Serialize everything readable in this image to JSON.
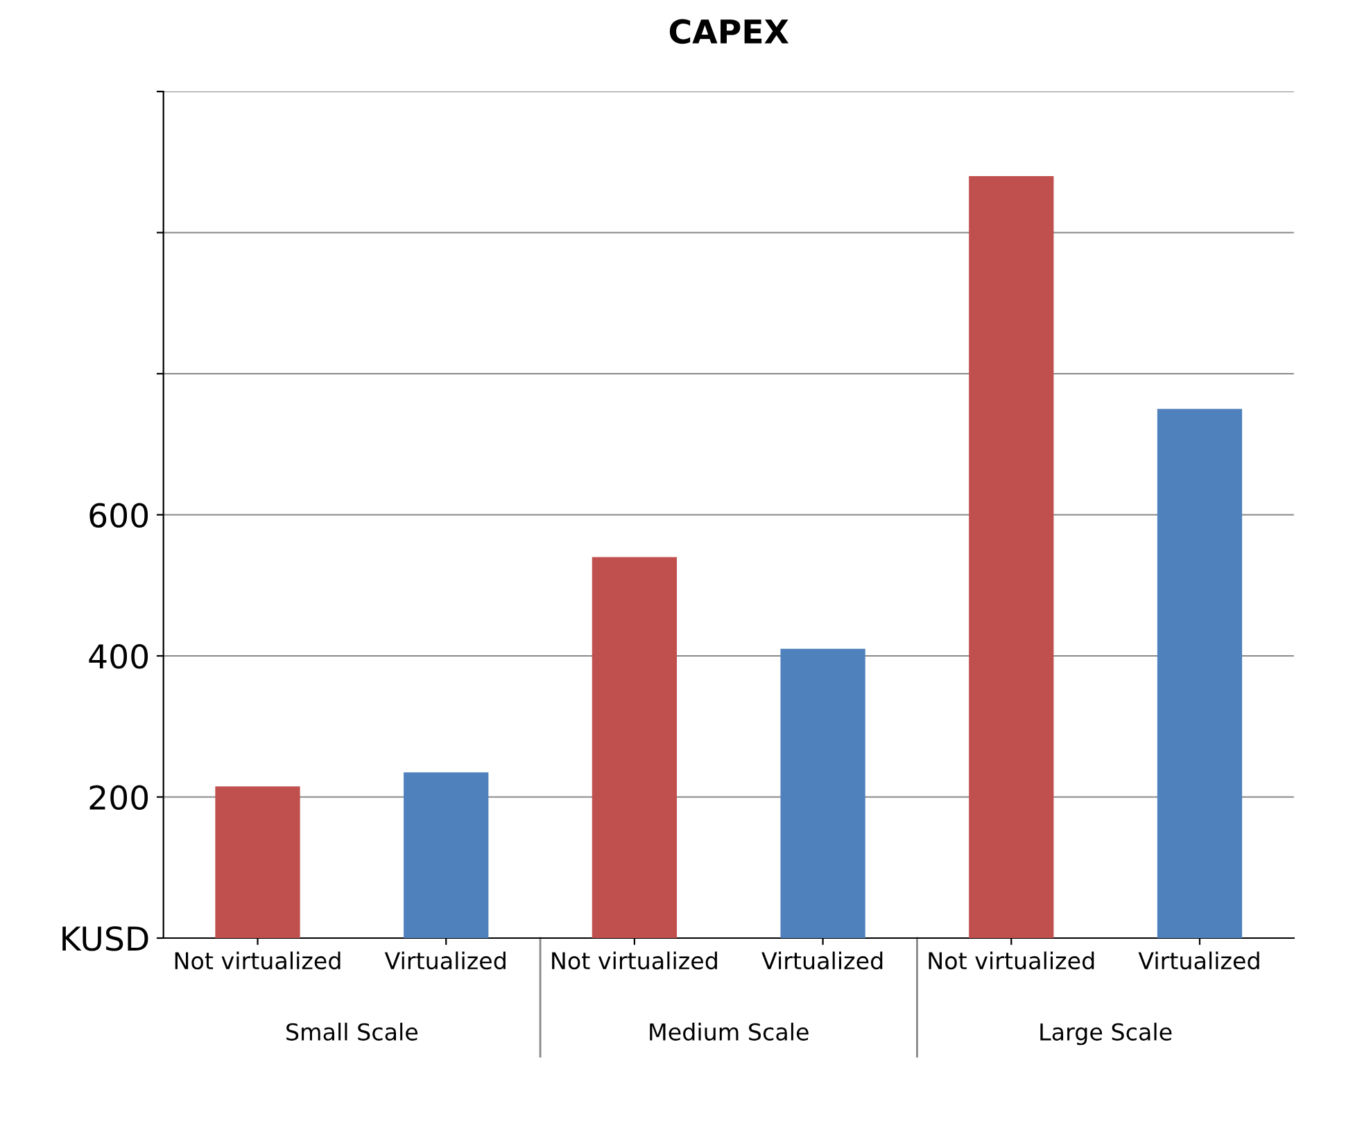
{
  "chart_data": {
    "type": "bar",
    "title": "CAPEX",
    "categories": [
      "Not virtualized",
      "Virtualized",
      "Not virtualized",
      "Virtualized",
      "Not virtualized",
      "Virtualized"
    ],
    "values": [
      215,
      235,
      540,
      410,
      1080,
      750
    ],
    "colors": [
      "#c0504d",
      "#4f81bd",
      "#c0504d",
      "#4f81bd",
      "#c0504d",
      "#4f81bd"
    ],
    "annotations": [
      "Small Scale",
      "Medium Scale",
      "Large Scale"
    ],
    "ylim": [
      0,
      1200
    ],
    "yticks": [
      {
        "value": 0,
        "label": "KUSD"
      },
      200,
      400,
      600,
      {
        "value": 800,
        "label": null
      },
      {
        "value": 1000,
        "label": null
      },
      {
        "value": 1200,
        "label": null
      }
    ],
    "grid": "y"
  }
}
